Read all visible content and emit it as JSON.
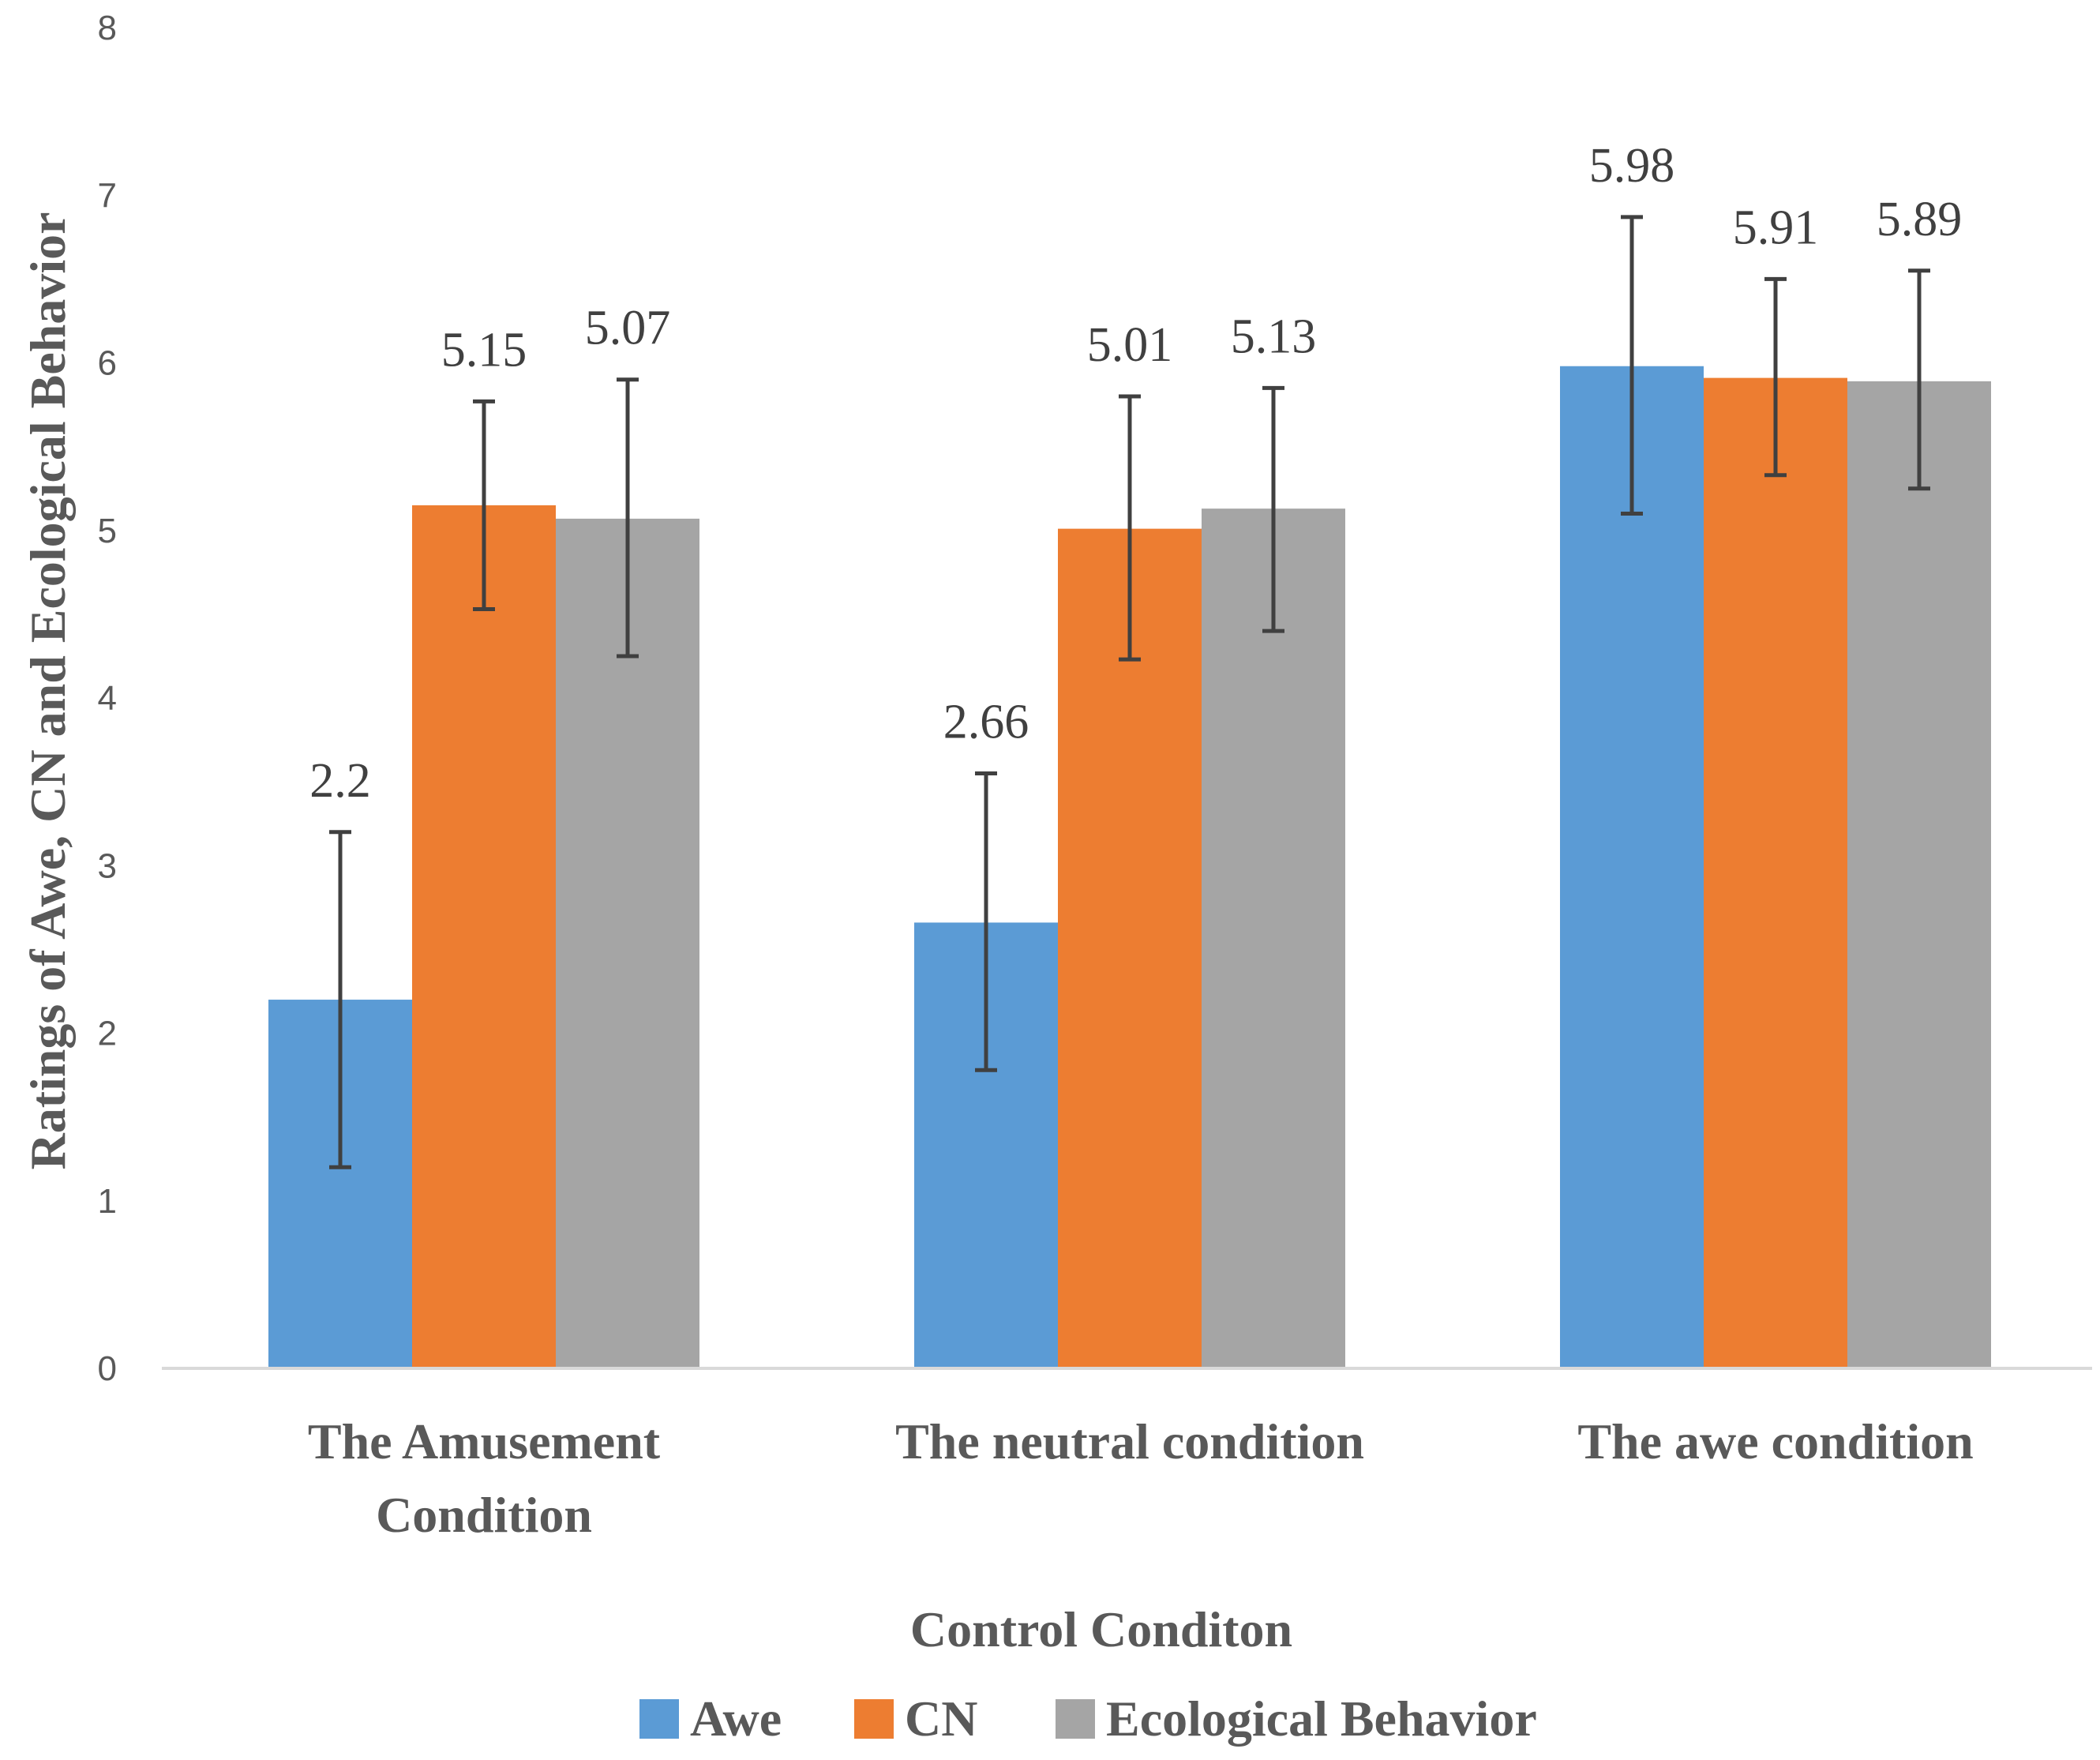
{
  "chart_data": {
    "type": "bar",
    "title": "",
    "xlabel": "Control Conditon",
    "ylabel": "Ratings of Awe, CN and Ecological Behavior",
    "ylim": [
      0,
      8
    ],
    "yticks": [
      "0",
      "1",
      "2",
      "3",
      "4",
      "5",
      "6",
      "7",
      "8"
    ],
    "categories": [
      [
        "The Amusement",
        "Condition"
      ],
      [
        "The neutral condition"
      ],
      [
        "The awe condition"
      ]
    ],
    "series": [
      {
        "name": "Awe",
        "color": "#5B9BD5",
        "values": [
          2.2,
          2.66,
          5.98
        ],
        "labels": [
          "2.2",
          "2.66",
          "5.98"
        ],
        "err_low": [
          1.2,
          1.78,
          5.1
        ],
        "err_high": [
          3.2,
          3.55,
          6.87
        ]
      },
      {
        "name": "CN",
        "color": "#ED7D31",
        "values": [
          5.15,
          5.01,
          5.91
        ],
        "labels": [
          "5.15",
          "5.01",
          "5.91"
        ],
        "err_low": [
          4.53,
          4.23,
          5.33
        ],
        "err_high": [
          5.77,
          5.8,
          6.5
        ]
      },
      {
        "name": "Ecological Behavior",
        "color": "#A5A5A5",
        "values": [
          5.07,
          5.13,
          5.89
        ],
        "labels": [
          "5.07",
          "5.13",
          "5.89"
        ],
        "err_low": [
          4.25,
          4.4,
          5.25
        ],
        "err_high": [
          5.9,
          5.85,
          6.55
        ]
      }
    ],
    "grid": false,
    "legend": "bottom"
  }
}
